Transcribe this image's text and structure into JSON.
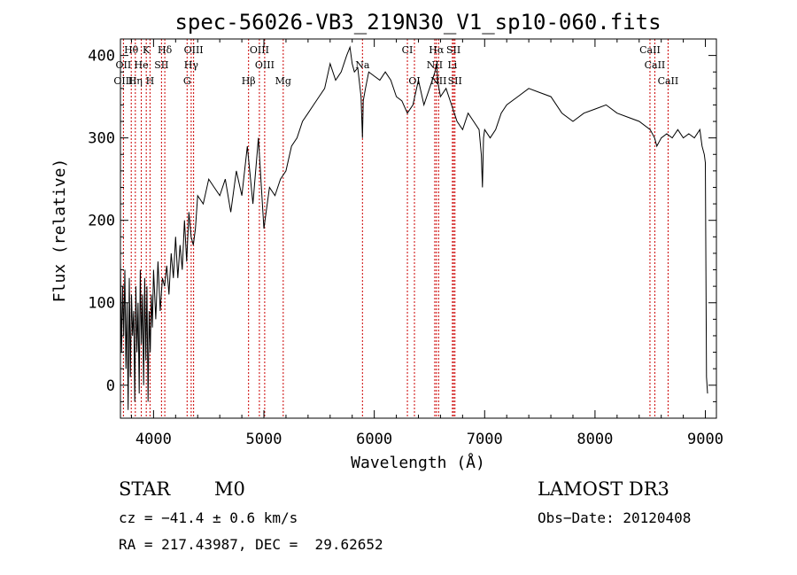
{
  "chart_data": {
    "type": "line",
    "title": "spec-56026-VB3_219N30_V1_sp10-060.fits",
    "xlabel": "Wavelength (Å)",
    "ylabel": "Flux (relative)",
    "xlim": [
      3700,
      9100
    ],
    "ylim": [
      -40,
      420
    ],
    "xticks": [
      4000,
      5000,
      6000,
      7000,
      8000,
      9000
    ],
    "yticks": [
      0,
      100,
      200,
      300,
      400
    ],
    "grid": false,
    "series": [
      {
        "name": "flux",
        "x": [
          3700,
          3710,
          3720,
          3730,
          3740,
          3750,
          3760,
          3770,
          3780,
          3790,
          3800,
          3810,
          3820,
          3830,
          3840,
          3850,
          3860,
          3870,
          3880,
          3890,
          3900,
          3910,
          3920,
          3930,
          3940,
          3950,
          3960,
          3970,
          3980,
          3990,
          4000,
          4020,
          4040,
          4060,
          4080,
          4100,
          4120,
          4140,
          4160,
          4180,
          4200,
          4220,
          4240,
          4260,
          4280,
          4300,
          4320,
          4340,
          4360,
          4380,
          4400,
          4450,
          4500,
          4550,
          4600,
          4650,
          4700,
          4750,
          4800,
          4850,
          4900,
          4950,
          5000,
          5050,
          5100,
          5150,
          5200,
          5250,
          5300,
          5350,
          5400,
          5450,
          5500,
          5550,
          5600,
          5650,
          5700,
          5750,
          5780,
          5800,
          5820,
          5850,
          5880,
          5893,
          5900,
          5920,
          5950,
          6000,
          6050,
          6100,
          6150,
          6200,
          6250,
          6300,
          6350,
          6400,
          6450,
          6500,
          6550,
          6563,
          6580,
          6600,
          6650,
          6700,
          6750,
          6800,
          6850,
          6900,
          6950,
          6970,
          6980,
          6990,
          7000,
          7050,
          7100,
          7150,
          7200,
          7300,
          7400,
          7500,
          7600,
          7700,
          7800,
          7900,
          8000,
          8100,
          8200,
          8300,
          8400,
          8500,
          8540,
          8560,
          8600,
          8650,
          8700,
          8750,
          8800,
          8850,
          8900,
          8950,
          8970,
          8990,
          9000,
          9010,
          9020
        ],
        "values": [
          150,
          40,
          120,
          60,
          140,
          20,
          100,
          -30,
          130,
          10,
          110,
          60,
          90,
          -20,
          120,
          40,
          100,
          -10,
          140,
          50,
          110,
          0,
          130,
          30,
          120,
          -20,
          90,
          40,
          110,
          70,
          140,
          80,
          150,
          90,
          130,
          120,
          145,
          110,
          160,
          130,
          180,
          130,
          170,
          140,
          200,
          150,
          210,
          180,
          170,
          190,
          230,
          220,
          250,
          240,
          230,
          250,
          210,
          260,
          230,
          290,
          220,
          300,
          190,
          240,
          230,
          250,
          260,
          290,
          300,
          320,
          330,
          340,
          350,
          360,
          390,
          370,
          380,
          400,
          410,
          390,
          380,
          385,
          350,
          300,
          345,
          360,
          380,
          375,
          370,
          380,
          370,
          350,
          345,
          330,
          340,
          370,
          340,
          360,
          380,
          390,
          365,
          350,
          360,
          340,
          320,
          310,
          330,
          320,
          310,
          280,
          240,
          300,
          310,
          300,
          310,
          330,
          340,
          350,
          360,
          355,
          350,
          330,
          320,
          330,
          335,
          340,
          330,
          325,
          320,
          310,
          300,
          290,
          300,
          305,
          300,
          310,
          300,
          305,
          300,
          310,
          290,
          280,
          270,
          10,
          -10
        ]
      }
    ],
    "spectral_lines": {
      "top_row": [
        {
          "label": "Hθ",
          "x": 3798
        },
        {
          "label": "K",
          "x": 3934
        },
        {
          "label": "Hδ",
          "x": 4102
        },
        {
          "label": "OIII",
          "x": 4363
        },
        {
          "label": "OIII",
          "x": 4959
        },
        {
          "label": "CI",
          "x": 6300
        },
        {
          "label": "Hα",
          "x": 6563
        },
        {
          "label": "SII",
          "x": 6718
        },
        {
          "label": "CaII",
          "x": 8498
        }
      ],
      "middle_row": [
        {
          "label": "OII",
          "x": 3727
        },
        {
          "label": "He",
          "x": 3889
        },
        {
          "label": "SII",
          "x": 4072
        },
        {
          "label": "Hγ",
          "x": 4341
        },
        {
          "label": "OIII",
          "x": 5007
        },
        {
          "label": "Na",
          "x": 5893
        },
        {
          "label": "NII",
          "x": 6548
        },
        {
          "label": "Li",
          "x": 6708
        },
        {
          "label": "CaII",
          "x": 8542
        }
      ],
      "bottom_row": [
        {
          "label": "OIII",
          "x": 3727
        },
        {
          "label": "Hη",
          "x": 3835
        },
        {
          "label": "H",
          "x": 3968
        },
        {
          "label": "G",
          "x": 4304
        },
        {
          "label": "Hβ",
          "x": 4861
        },
        {
          "label": "Mg",
          "x": 5175
        },
        {
          "label": "OI",
          "x": 6364
        },
        {
          "label": "NII",
          "x": 6583
        },
        {
          "label": "SII",
          "x": 6731
        },
        {
          "label": "CaII",
          "x": 8662
        }
      ],
      "line_color": "#cc0000"
    }
  },
  "info": {
    "object_class": "STAR",
    "subclass": "M0",
    "survey": "LAMOST DR3",
    "cz": "cz = −41.4 ± 0.6 km/s",
    "obs_date": "Obs−Date: 20120408",
    "coords": "RA = 217.43987, DEC =  29.62652"
  }
}
